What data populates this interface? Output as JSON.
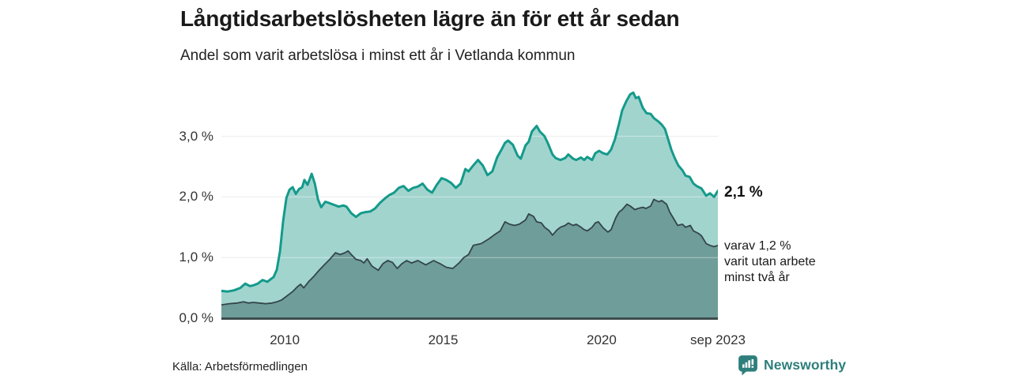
{
  "header": {
    "title": "Långtidsarbetslösheten lägre än för ett år sedan",
    "subtitle": "Andel som varit arbetslösa i minst ett år i Vetlanda kommun"
  },
  "annotations": {
    "latest_total": "2,1 %",
    "note_line1": "varav 1,2 %",
    "note_line2": "varit utan arbete",
    "note_line3": "minst två år"
  },
  "footer": {
    "source": "Källa: Arbetsförmedlingen",
    "brand": "Newsworthy"
  },
  "colors": {
    "line_total": "#149a8b",
    "fill_total": "#a2d4ce",
    "line_two_years": "#33454a",
    "fill_two_years": "#6f9d99",
    "axis": "#3d4c4e",
    "gridline": "#dedede",
    "brand_teal": "#2e7f7c"
  },
  "chart_data": {
    "type": "area",
    "title": "Långtidsarbetslösheten lägre än för ett år sedan",
    "subtitle": "Andel som varit arbetslösa i minst ett år i Vetlanda kommun",
    "unit": "%",
    "xlim": [
      2008.0,
      2023.67
    ],
    "ylim": [
      0,
      3.8
    ],
    "grid": true,
    "x_ticks": [
      {
        "t": 2010,
        "label": "2010"
      },
      {
        "t": 2015,
        "label": "2015"
      },
      {
        "t": 2020,
        "label": "2020"
      },
      {
        "t": 2023.67,
        "label": "sep 2023"
      }
    ],
    "y_ticks": [
      {
        "v": 0,
        "label": "0,0 %"
      },
      {
        "v": 1,
        "label": "1,0 %"
      },
      {
        "v": 2,
        "label": "2,0 %"
      },
      {
        "v": 3,
        "label": "3,0 %"
      }
    ],
    "series": [
      {
        "name": "arbetslösa minst ett år",
        "end_value": 2.1,
        "end_label": "2,1 %",
        "points": [
          [
            2008.0,
            0.45
          ],
          [
            2008.2,
            0.44
          ],
          [
            2008.4,
            0.46
          ],
          [
            2008.6,
            0.5
          ],
          [
            2008.75,
            0.57
          ],
          [
            2008.9,
            0.53
          ],
          [
            2009.0,
            0.54
          ],
          [
            2009.15,
            0.57
          ],
          [
            2009.3,
            0.63
          ],
          [
            2009.45,
            0.6
          ],
          [
            2009.55,
            0.64
          ],
          [
            2009.65,
            0.68
          ],
          [
            2009.75,
            0.8
          ],
          [
            2009.85,
            1.1
          ],
          [
            2009.95,
            1.6
          ],
          [
            2010.05,
            1.98
          ],
          [
            2010.15,
            2.12
          ],
          [
            2010.25,
            2.16
          ],
          [
            2010.35,
            2.05
          ],
          [
            2010.45,
            2.13
          ],
          [
            2010.55,
            2.16
          ],
          [
            2010.62,
            2.28
          ],
          [
            2010.72,
            2.2
          ],
          [
            2010.85,
            2.38
          ],
          [
            2010.95,
            2.22
          ],
          [
            2011.05,
            1.96
          ],
          [
            2011.15,
            1.83
          ],
          [
            2011.28,
            1.92
          ],
          [
            2011.4,
            1.9
          ],
          [
            2011.55,
            1.87
          ],
          [
            2011.7,
            1.84
          ],
          [
            2011.85,
            1.86
          ],
          [
            2011.95,
            1.84
          ],
          [
            2012.1,
            1.73
          ],
          [
            2012.25,
            1.67
          ],
          [
            2012.4,
            1.73
          ],
          [
            2012.55,
            1.75
          ],
          [
            2012.7,
            1.76
          ],
          [
            2012.85,
            1.81
          ],
          [
            2013.0,
            1.9
          ],
          [
            2013.15,
            1.97
          ],
          [
            2013.3,
            2.03
          ],
          [
            2013.45,
            2.07
          ],
          [
            2013.6,
            2.15
          ],
          [
            2013.75,
            2.18
          ],
          [
            2013.9,
            2.1
          ],
          [
            2014.05,
            2.15
          ],
          [
            2014.2,
            2.17
          ],
          [
            2014.35,
            2.22
          ],
          [
            2014.5,
            2.12
          ],
          [
            2014.65,
            2.07
          ],
          [
            2014.8,
            2.2
          ],
          [
            2014.95,
            2.31
          ],
          [
            2015.1,
            2.28
          ],
          [
            2015.25,
            2.23
          ],
          [
            2015.4,
            2.15
          ],
          [
            2015.55,
            2.22
          ],
          [
            2015.7,
            2.46
          ],
          [
            2015.8,
            2.42
          ],
          [
            2015.95,
            2.52
          ],
          [
            2016.1,
            2.61
          ],
          [
            2016.25,
            2.52
          ],
          [
            2016.4,
            2.36
          ],
          [
            2016.55,
            2.42
          ],
          [
            2016.7,
            2.65
          ],
          [
            2016.85,
            2.79
          ],
          [
            2016.95,
            2.89
          ],
          [
            2017.05,
            2.93
          ],
          [
            2017.2,
            2.86
          ],
          [
            2017.35,
            2.68
          ],
          [
            2017.45,
            2.63
          ],
          [
            2017.6,
            2.85
          ],
          [
            2017.7,
            2.91
          ],
          [
            2017.8,
            3.08
          ],
          [
            2017.95,
            3.17
          ],
          [
            2018.05,
            3.08
          ],
          [
            2018.2,
            3.0
          ],
          [
            2018.3,
            2.89
          ],
          [
            2018.45,
            2.7
          ],
          [
            2018.55,
            2.64
          ],
          [
            2018.7,
            2.61
          ],
          [
            2018.85,
            2.64
          ],
          [
            2018.95,
            2.7
          ],
          [
            2019.1,
            2.63
          ],
          [
            2019.2,
            2.61
          ],
          [
            2019.35,
            2.65
          ],
          [
            2019.45,
            2.61
          ],
          [
            2019.55,
            2.66
          ],
          [
            2019.7,
            2.61
          ],
          [
            2019.8,
            2.72
          ],
          [
            2019.92,
            2.76
          ],
          [
            2020.05,
            2.72
          ],
          [
            2020.18,
            2.7
          ],
          [
            2020.3,
            2.78
          ],
          [
            2020.42,
            2.95
          ],
          [
            2020.55,
            3.21
          ],
          [
            2020.65,
            3.43
          ],
          [
            2020.78,
            3.58
          ],
          [
            2020.9,
            3.69
          ],
          [
            2021.0,
            3.72
          ],
          [
            2021.08,
            3.63
          ],
          [
            2021.17,
            3.65
          ],
          [
            2021.3,
            3.47
          ],
          [
            2021.42,
            3.38
          ],
          [
            2021.55,
            3.37
          ],
          [
            2021.65,
            3.3
          ],
          [
            2021.8,
            3.24
          ],
          [
            2021.9,
            3.19
          ],
          [
            2022.0,
            3.12
          ],
          [
            2022.1,
            2.95
          ],
          [
            2022.2,
            2.78
          ],
          [
            2022.3,
            2.65
          ],
          [
            2022.42,
            2.52
          ],
          [
            2022.55,
            2.44
          ],
          [
            2022.65,
            2.35
          ],
          [
            2022.78,
            2.33
          ],
          [
            2022.9,
            2.22
          ],
          [
            2023.0,
            2.18
          ],
          [
            2023.15,
            2.14
          ],
          [
            2023.3,
            2.02
          ],
          [
            2023.42,
            2.06
          ],
          [
            2023.55,
            2.0
          ],
          [
            2023.67,
            2.1
          ]
        ]
      },
      {
        "name": "varav utan arbete minst två år",
        "end_value": 1.2,
        "end_label": "varav 1,2 % varit utan arbete minst två år",
        "points": [
          [
            2008.0,
            0.22
          ],
          [
            2008.25,
            0.24
          ],
          [
            2008.5,
            0.25
          ],
          [
            2008.7,
            0.27
          ],
          [
            2008.85,
            0.25
          ],
          [
            2009.0,
            0.26
          ],
          [
            2009.2,
            0.25
          ],
          [
            2009.4,
            0.24
          ],
          [
            2009.6,
            0.25
          ],
          [
            2009.75,
            0.27
          ],
          [
            2009.9,
            0.3
          ],
          [
            2010.0,
            0.34
          ],
          [
            2010.15,
            0.4
          ],
          [
            2010.25,
            0.44
          ],
          [
            2010.4,
            0.52
          ],
          [
            2010.5,
            0.56
          ],
          [
            2010.6,
            0.5
          ],
          [
            2010.75,
            0.6
          ],
          [
            2010.9,
            0.68
          ],
          [
            2011.0,
            0.74
          ],
          [
            2011.1,
            0.8
          ],
          [
            2011.25,
            0.88
          ],
          [
            2011.4,
            0.96
          ],
          [
            2011.5,
            1.02
          ],
          [
            2011.6,
            1.08
          ],
          [
            2011.75,
            1.05
          ],
          [
            2011.9,
            1.08
          ],
          [
            2012.0,
            1.11
          ],
          [
            2012.1,
            1.05
          ],
          [
            2012.25,
            0.97
          ],
          [
            2012.4,
            0.95
          ],
          [
            2012.5,
            0.91
          ],
          [
            2012.6,
            0.98
          ],
          [
            2012.75,
            0.86
          ],
          [
            2012.95,
            0.79
          ],
          [
            2013.1,
            0.9
          ],
          [
            2013.25,
            0.95
          ],
          [
            2013.4,
            0.92
          ],
          [
            2013.55,
            0.82
          ],
          [
            2013.7,
            0.9
          ],
          [
            2013.85,
            0.95
          ],
          [
            2014.0,
            0.91
          ],
          [
            2014.2,
            0.95
          ],
          [
            2014.45,
            0.88
          ],
          [
            2014.7,
            0.95
          ],
          [
            2014.9,
            0.9
          ],
          [
            2015.1,
            0.84
          ],
          [
            2015.3,
            0.82
          ],
          [
            2015.5,
            0.91
          ],
          [
            2015.65,
            1.0
          ],
          [
            2015.8,
            1.05
          ],
          [
            2015.95,
            1.2
          ],
          [
            2016.2,
            1.23
          ],
          [
            2016.45,
            1.31
          ],
          [
            2016.6,
            1.37
          ],
          [
            2016.8,
            1.44
          ],
          [
            2016.95,
            1.59
          ],
          [
            2017.1,
            1.55
          ],
          [
            2017.25,
            1.53
          ],
          [
            2017.4,
            1.55
          ],
          [
            2017.6,
            1.62
          ],
          [
            2017.7,
            1.72
          ],
          [
            2017.85,
            1.68
          ],
          [
            2017.95,
            1.59
          ],
          [
            2018.1,
            1.57
          ],
          [
            2018.2,
            1.5
          ],
          [
            2018.35,
            1.44
          ],
          [
            2018.45,
            1.37
          ],
          [
            2018.6,
            1.46
          ],
          [
            2018.7,
            1.5
          ],
          [
            2018.85,
            1.53
          ],
          [
            2018.95,
            1.57
          ],
          [
            2019.1,
            1.53
          ],
          [
            2019.2,
            1.55
          ],
          [
            2019.35,
            1.5
          ],
          [
            2019.45,
            1.46
          ],
          [
            2019.55,
            1.44
          ],
          [
            2019.7,
            1.5
          ],
          [
            2019.8,
            1.57
          ],
          [
            2019.9,
            1.59
          ],
          [
            2020.05,
            1.49
          ],
          [
            2020.2,
            1.42
          ],
          [
            2020.3,
            1.46
          ],
          [
            2020.45,
            1.66
          ],
          [
            2020.55,
            1.75
          ],
          [
            2020.65,
            1.79
          ],
          [
            2020.8,
            1.88
          ],
          [
            2020.9,
            1.85
          ],
          [
            2021.05,
            1.79
          ],
          [
            2021.15,
            1.81
          ],
          [
            2021.3,
            1.83
          ],
          [
            2021.4,
            1.81
          ],
          [
            2021.55,
            1.85
          ],
          [
            2021.65,
            1.96
          ],
          [
            2021.8,
            1.92
          ],
          [
            2021.9,
            1.94
          ],
          [
            2022.05,
            1.88
          ],
          [
            2022.15,
            1.75
          ],
          [
            2022.3,
            1.62
          ],
          [
            2022.4,
            1.53
          ],
          [
            2022.55,
            1.55
          ],
          [
            2022.65,
            1.5
          ],
          [
            2022.8,
            1.53
          ],
          [
            2022.9,
            1.44
          ],
          [
            2023.05,
            1.4
          ],
          [
            2023.15,
            1.36
          ],
          [
            2023.3,
            1.23
          ],
          [
            2023.42,
            1.2
          ],
          [
            2023.55,
            1.18
          ],
          [
            2023.67,
            1.2
          ]
        ]
      }
    ]
  }
}
